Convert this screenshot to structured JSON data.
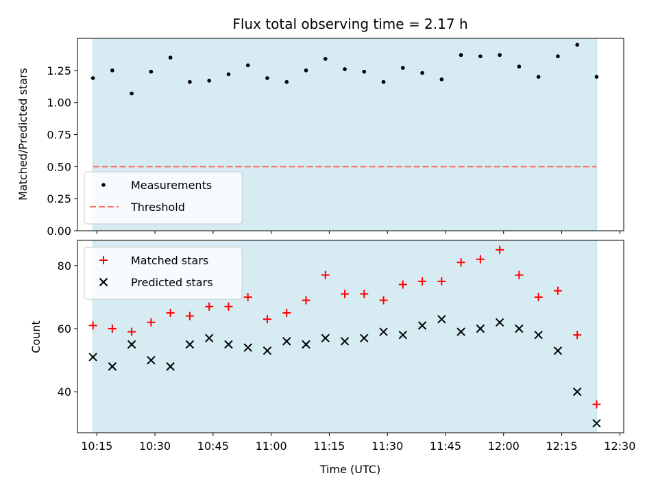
{
  "title": "Flux total observing time = 2.17 h",
  "xlabel": "Time (UTC)",
  "colors": {
    "shade": "#add8e6",
    "measurement": "#000000",
    "threshold": "#ff6b6b",
    "matched": "#ff0000",
    "predicted": "#000000"
  },
  "chart_data": [
    {
      "type": "scatter",
      "panel": "top",
      "ylabel": "Matched/Predicted stars",
      "ylim": [
        0,
        1.5
      ],
      "yticks": [
        "0.00",
        "0.25",
        "0.50",
        "0.75",
        "1.00",
        "1.25"
      ],
      "xlim": [
        "10:10",
        "12:31"
      ],
      "xticks": [
        "10:15",
        "10:30",
        "10:45",
        "11:00",
        "11:15",
        "11:30",
        "11:45",
        "12:00",
        "12:15",
        "12:30"
      ],
      "shaded_span": [
        "10:14",
        "12:24"
      ],
      "legend_position": "lower-left",
      "threshold": {
        "name": "Threshold",
        "value": 0.5,
        "style": "dashed"
      },
      "series": [
        {
          "name": "Measurements",
          "marker": "dot",
          "x": [
            "10:14",
            "10:19",
            "10:24",
            "10:29",
            "10:34",
            "10:39",
            "10:44",
            "10:49",
            "10:54",
            "10:59",
            "11:04",
            "11:09",
            "11:14",
            "11:19",
            "11:24",
            "11:29",
            "11:34",
            "11:39",
            "11:44",
            "11:49",
            "11:54",
            "11:59",
            "12:04",
            "12:09",
            "12:14",
            "12:19",
            "12:24"
          ],
          "values": [
            1.19,
            1.25,
            1.07,
            1.24,
            1.35,
            1.16,
            1.17,
            1.22,
            1.29,
            1.19,
            1.16,
            1.25,
            1.34,
            1.26,
            1.24,
            1.16,
            1.27,
            1.23,
            1.18,
            1.37,
            1.36,
            1.37,
            1.28,
            1.2,
            1.36,
            1.45,
            1.2
          ]
        }
      ]
    },
    {
      "type": "scatter",
      "panel": "bottom",
      "ylabel": "Count",
      "ylim": [
        27,
        88
      ],
      "yticks": [
        "40",
        "60",
        "80"
      ],
      "xlim": [
        "10:10",
        "12:31"
      ],
      "xticks": [
        "10:15",
        "10:30",
        "10:45",
        "11:00",
        "11:15",
        "11:30",
        "11:45",
        "12:00",
        "12:15",
        "12:30"
      ],
      "shaded_span": [
        "10:14",
        "12:24"
      ],
      "legend_position": "top-left",
      "series": [
        {
          "name": "Matched stars",
          "marker": "plus",
          "x": [
            "10:14",
            "10:19",
            "10:24",
            "10:29",
            "10:34",
            "10:39",
            "10:44",
            "10:49",
            "10:54",
            "10:59",
            "11:04",
            "11:09",
            "11:14",
            "11:19",
            "11:24",
            "11:29",
            "11:34",
            "11:39",
            "11:44",
            "11:49",
            "11:54",
            "11:59",
            "12:04",
            "12:09",
            "12:14",
            "12:19",
            "12:24"
          ],
          "values": [
            61,
            60,
            59,
            62,
            65,
            64,
            67,
            67,
            70,
            63,
            65,
            69,
            77,
            71,
            71,
            69,
            74,
            75,
            75,
            81,
            82,
            85,
            77,
            70,
            72,
            58,
            36
          ]
        },
        {
          "name": "Predicted stars",
          "marker": "x",
          "x": [
            "10:14",
            "10:19",
            "10:24",
            "10:29",
            "10:34",
            "10:39",
            "10:44",
            "10:49",
            "10:54",
            "10:59",
            "11:04",
            "11:09",
            "11:14",
            "11:19",
            "11:24",
            "11:29",
            "11:34",
            "11:39",
            "11:44",
            "11:49",
            "11:54",
            "11:59",
            "12:04",
            "12:09",
            "12:14",
            "12:19",
            "12:24"
          ],
          "values": [
            51,
            48,
            55,
            50,
            48,
            55,
            57,
            55,
            54,
            53,
            56,
            55,
            57,
            56,
            57,
            59,
            58,
            61,
            63,
            59,
            60,
            62,
            60,
            58,
            53,
            40,
            30
          ]
        }
      ]
    }
  ]
}
